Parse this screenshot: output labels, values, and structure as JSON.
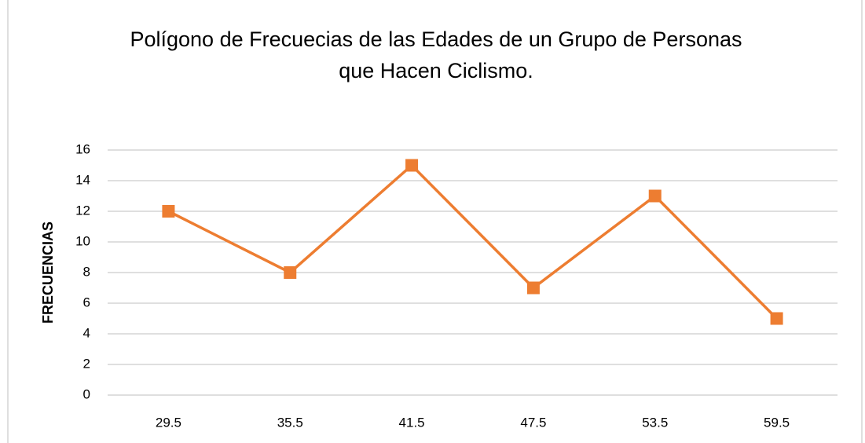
{
  "chart_data": {
    "type": "line",
    "title": "Polígono de Frecuecias de las Edades de un Grupo de Personas que Hacen Ciclismo.",
    "y_label": "FRECUENCIAS",
    "categories": [
      "29.5",
      "35.5",
      "41.5",
      "47.5",
      "53.5",
      "59.5"
    ],
    "series": [
      {
        "name": "Frecuencias",
        "color": "#ed7d31",
        "values": [
          12,
          8,
          15,
          7,
          13,
          5
        ]
      }
    ],
    "ylim": [
      0,
      16
    ],
    "yticks": [
      0,
      2,
      4,
      6,
      8,
      10,
      12,
      14,
      16
    ],
    "grid": true,
    "legend": false
  }
}
